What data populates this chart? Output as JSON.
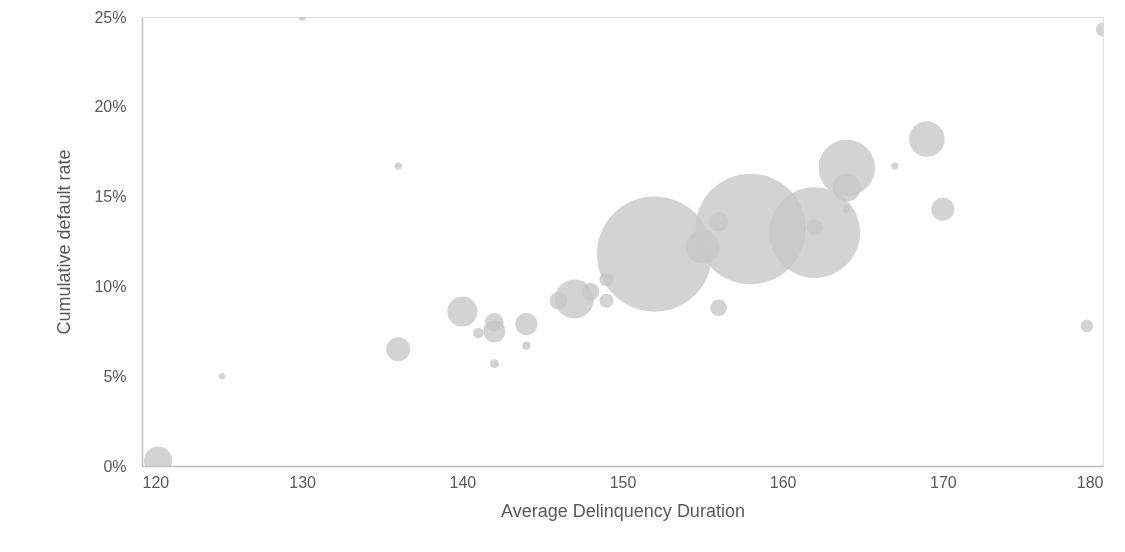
{
  "chart_data": {
    "type": "bubble",
    "xlabel": "Average Delinquency Duration",
    "ylabel": "Cumulative default rate",
    "x": [
      121,
      125,
      130,
      136,
      136,
      140,
      141,
      142,
      142,
      142,
      144,
      144,
      146,
      147,
      148,
      149,
      149,
      152,
      155,
      156,
      156,
      158,
      162,
      162,
      164,
      164,
      164,
      167,
      169,
      170,
      179,
      180
    ],
    "series": [
      {
        "color": "#c8c8c8",
        "values": [
          0.3,
          5.0,
          25.0,
          16.7,
          6.5,
          8.6,
          7.4,
          8.0,
          7.5,
          5.7,
          7.9,
          6.7,
          9.2,
          9.3,
          9.7,
          10.4,
          9.2,
          11.8,
          12.2,
          13.6,
          8.8,
          13.2,
          13.0,
          13.3,
          16.6,
          15.5,
          14.3,
          16.7,
          18.2,
          14.3,
          7.8,
          24.3
        ],
        "sizes": [
          0.06,
          0.003,
          0.004,
          0.004,
          0.043,
          0.068,
          0.0085,
          0.026,
          0.037,
          0.006,
          0.037,
          0.005,
          0.024,
          0.115,
          0.024,
          0.015,
          0.015,
          1,
          0.085,
          0.029,
          0.021,
          0.92,
          0.62,
          0.019,
          0.24,
          0.06,
          0.004,
          0.004,
          0.095,
          0.04,
          0.012,
          0.015
        ]
      }
    ],
    "xlim": [
      120,
      180
    ],
    "xticks": [
      120,
      130,
      140,
      150,
      160,
      170,
      180
    ],
    "ylim": [
      0,
      25
    ],
    "yticks": [
      {
        "value": 0,
        "label": "0%"
      },
      {
        "value": 5,
        "label": "5%"
      },
      {
        "value": 10,
        "label": "10%"
      },
      {
        "value": 15,
        "label": "15%"
      },
      {
        "value": 20,
        "label": "20%"
      },
      {
        "value": 25,
        "label": "25%"
      }
    ],
    "grid": false
  }
}
